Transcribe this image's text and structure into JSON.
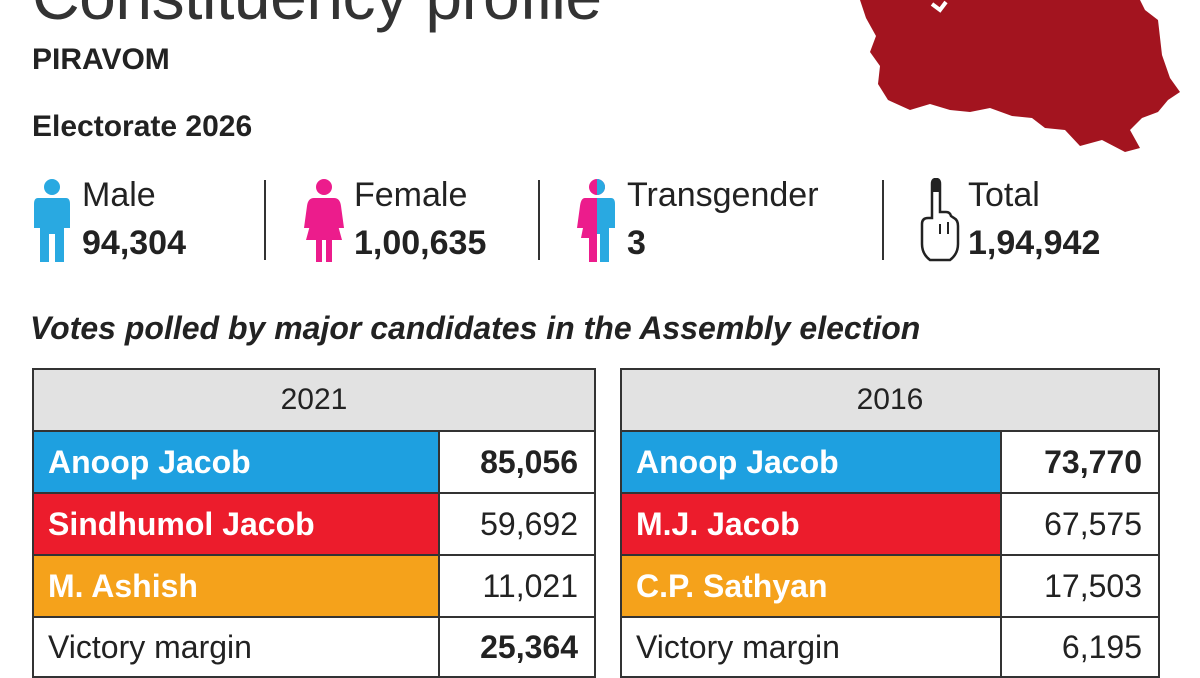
{
  "header": {
    "title": "Constituency profile",
    "constituency": "PIRAVOM",
    "electorate_label": "Electorate 2026"
  },
  "electorate": [
    {
      "label": "Male",
      "value": "94,304",
      "icon": "male-person-icon",
      "color": "#29a9e1"
    },
    {
      "label": "Female",
      "value": "1,00,635",
      "icon": "female-person-icon",
      "color": "#ec1c8c"
    },
    {
      "label": "Transgender",
      "value": "3",
      "icon": "transgender-person-icon",
      "color": "#ec1c8c"
    },
    {
      "label": "Total",
      "value": "1,94,942",
      "icon": "inked-finger-icon",
      "color": "#222222"
    }
  ],
  "caption": "Votes polled by major candidates in the Assembly election",
  "tables": [
    {
      "year": "2021",
      "rows": [
        {
          "name": "Anoop Jacob",
          "votes": "85,056",
          "color": "#1ea0e0"
        },
        {
          "name": "Sindhumol Jacob",
          "votes": "59,692",
          "color": "#ec1c2c"
        },
        {
          "name": "M. Ashish",
          "votes": "11,021",
          "color": "#f5a21b"
        },
        {
          "name": "Victory margin",
          "votes": "25,364",
          "color": "#ffffff"
        }
      ]
    },
    {
      "year": "2016",
      "rows": [
        {
          "name": "Anoop Jacob",
          "votes": "73,770",
          "color": "#1ea0e0"
        },
        {
          "name": "M.J. Jacob",
          "votes": "67,575",
          "color": "#ec1c2c"
        },
        {
          "name": "C.P. Sathyan",
          "votes": "17,503",
          "color": "#f5a21b"
        },
        {
          "name": "Victory margin",
          "votes": "6,195",
          "color": "#ffffff"
        }
      ]
    }
  ],
  "colors": {
    "map": "#a3141f",
    "header_bg": "#e2e2e2"
  }
}
